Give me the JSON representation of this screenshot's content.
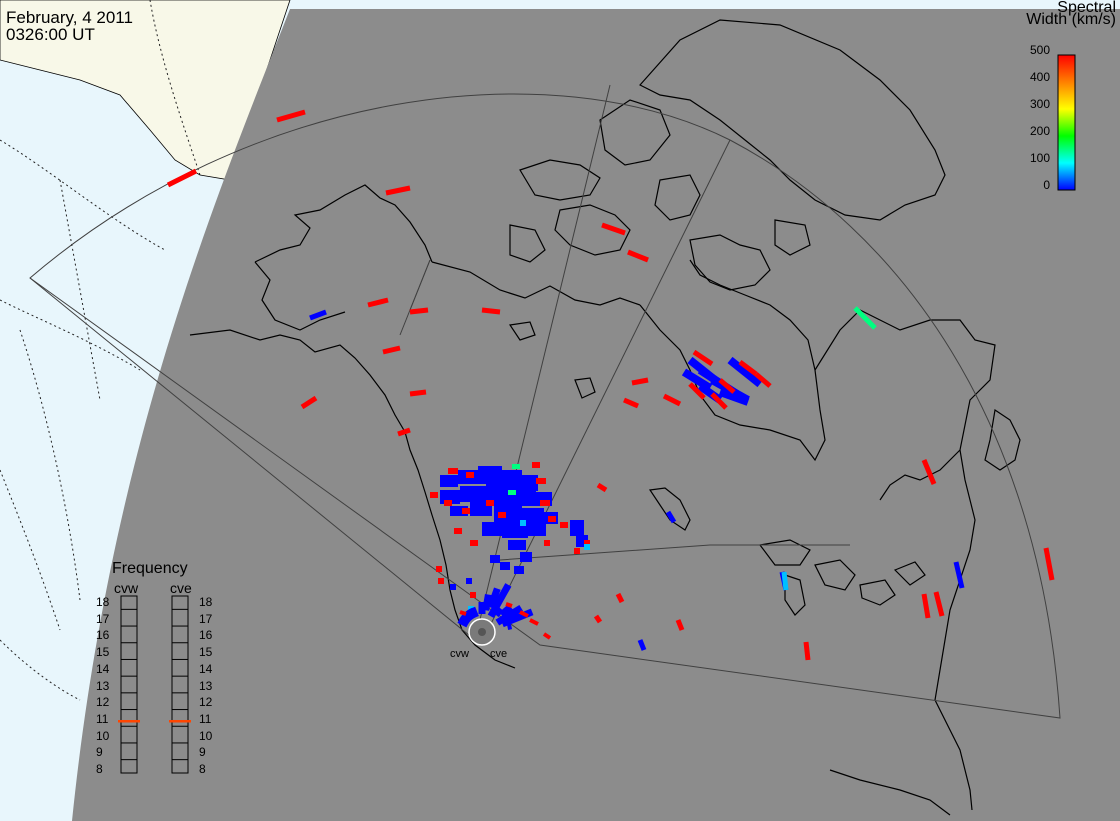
{
  "header": {
    "date": "February, 4 2011",
    "time": "0326:00 UT"
  },
  "colorbar": {
    "title_line1": "Spectral",
    "title_line2": "Width (km/s)",
    "ticks": [
      "500",
      "400",
      "300",
      "200",
      "100",
      "0"
    ],
    "colors": [
      "#ff0000",
      "#ff8000",
      "#ffff00",
      "#00ff00",
      "#00ffff",
      "#0000ff"
    ]
  },
  "frequency": {
    "title": "Frequency",
    "radars": [
      "cvw",
      "cve"
    ],
    "ticks": [
      "18",
      "17",
      "16",
      "15",
      "14",
      "13",
      "12",
      "11",
      "10",
      "9",
      "8"
    ],
    "cvw_mhz": 10.8,
    "cve_mhz": 10.8,
    "marker_color": "#ff4500"
  },
  "radar_labels": [
    "cvw",
    "cve"
  ],
  "map_colors": {
    "night": "#8c8c8c",
    "day_land": "#f8f8e8",
    "day_ocean": "#e8f6fc",
    "coast": "#000000",
    "fov": "#404040"
  }
}
